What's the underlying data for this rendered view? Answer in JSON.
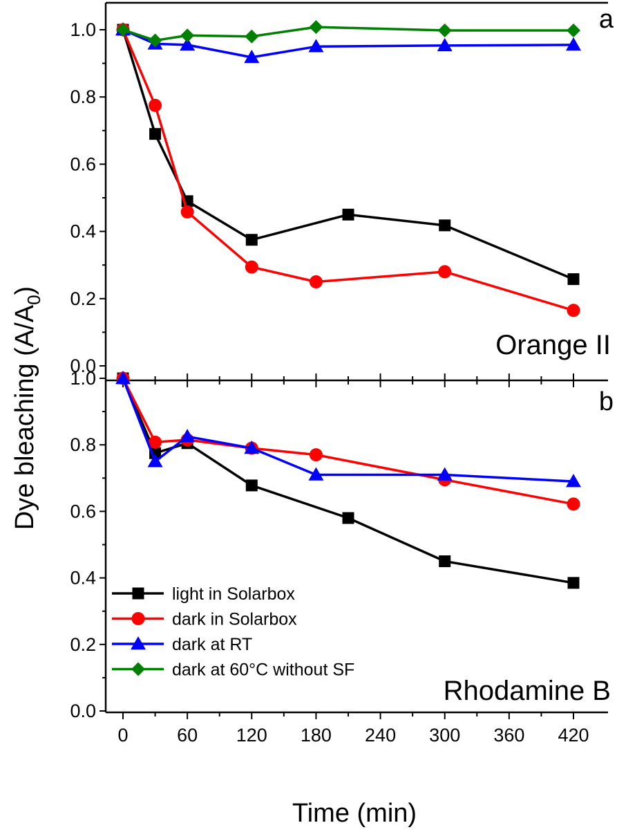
{
  "chart_data": [
    {
      "panel": "a",
      "type": "line",
      "annotation": "Orange II",
      "ylim": [
        0,
        1.05
      ],
      "xlim": [
        -15,
        445
      ],
      "yticks": [
        "0.0",
        "0.2",
        "0.4",
        "0.6",
        "0.8",
        "1.0"
      ],
      "series": [
        {
          "name": "light in Solarbox",
          "color": "#000000",
          "marker": "square",
          "x": [
            0,
            30,
            60,
            120,
            210,
            300,
            420
          ],
          "y": [
            1.0,
            0.69,
            0.49,
            0.375,
            0.45,
            0.418,
            0.258
          ]
        },
        {
          "name": "dark in Solarbox",
          "color": "#ff0000",
          "marker": "circle",
          "x": [
            0,
            30,
            60,
            120,
            180,
            300,
            420
          ],
          "y": [
            1.0,
            0.775,
            0.458,
            0.294,
            0.25,
            0.28,
            0.165
          ]
        },
        {
          "name": "dark at RT",
          "color": "#0000ff",
          "marker": "triangle",
          "x": [
            0,
            30,
            60,
            120,
            180,
            300,
            420
          ],
          "y": [
            1.0,
            0.958,
            0.955,
            0.918,
            0.95,
            0.953,
            0.955
          ]
        },
        {
          "name": "dark at 60°C without SF",
          "color": "#008000",
          "marker": "diamond",
          "x": [
            0,
            30,
            60,
            120,
            180,
            300,
            420
          ],
          "y": [
            1.0,
            0.968,
            0.983,
            0.98,
            1.008,
            0.998,
            0.998
          ]
        }
      ]
    },
    {
      "panel": "b",
      "type": "line",
      "annotation": "Rhodamine B",
      "ylim": [
        0,
        1.05
      ],
      "xlim": [
        -15,
        445
      ],
      "yticks": [
        "0.0",
        "0.2",
        "0.4",
        "0.6",
        "0.8",
        "1.0"
      ],
      "series": [
        {
          "name": "light in Solarbox",
          "color": "#000000",
          "marker": "square",
          "x": [
            0,
            30,
            60,
            120,
            210,
            300,
            420
          ],
          "y": [
            1.0,
            0.775,
            0.805,
            0.678,
            0.58,
            0.45,
            0.385
          ]
        },
        {
          "name": "dark in Solarbox",
          "color": "#ff0000",
          "marker": "circle",
          "x": [
            0,
            30,
            60,
            120,
            180,
            300,
            420
          ],
          "y": [
            1.0,
            0.808,
            0.815,
            0.79,
            0.77,
            0.695,
            0.622
          ]
        },
        {
          "name": "dark at RT",
          "color": "#0000ff",
          "marker": "triangle",
          "x": [
            0,
            30,
            60,
            120,
            180,
            300,
            420
          ],
          "y": [
            1.0,
            0.75,
            0.825,
            0.79,
            0.71,
            0.71,
            0.69
          ]
        }
      ]
    }
  ],
  "xticks": [
    "0",
    "60",
    "120",
    "180",
    "240",
    "300",
    "360",
    "420"
  ],
  "xlabel": "Time (min)",
  "ylabel_main": "Dye bleaching (A/A",
  "ylabel_sub": "0",
  "ylabel_end": ")",
  "legend": {
    "placement": "lower-left of panel b",
    "items": [
      {
        "label": "light in Solarbox",
        "color": "#000000",
        "marker": "square"
      },
      {
        "label": "dark in Solarbox",
        "color": "#ff0000",
        "marker": "circle"
      },
      {
        "label": "dark at RT",
        "color": "#0000ff",
        "marker": "triangle"
      },
      {
        "label": "dark at 60°C without SF",
        "color": "#008000",
        "marker": "diamond"
      }
    ]
  }
}
